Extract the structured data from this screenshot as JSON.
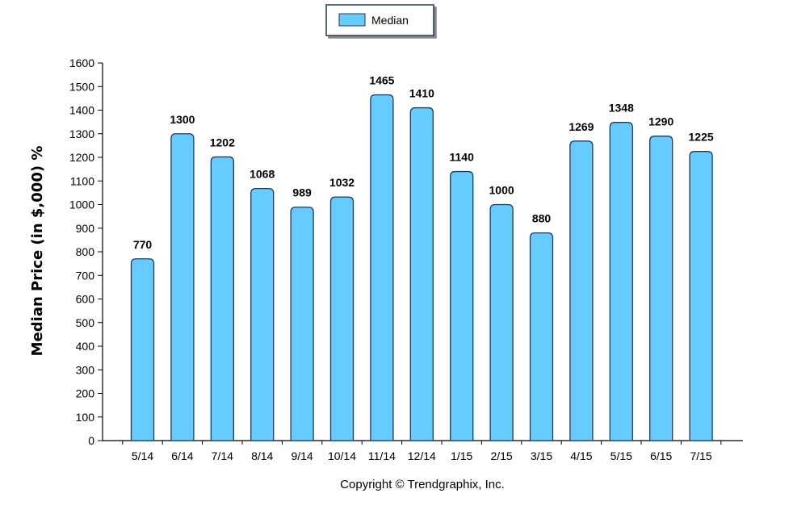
{
  "chart_data": {
    "type": "bar",
    "categories": [
      "5/14",
      "6/14",
      "7/14",
      "8/14",
      "9/14",
      "10/14",
      "11/14",
      "12/14",
      "1/15",
      "2/15",
      "3/15",
      "4/15",
      "5/15",
      "6/15",
      "7/15"
    ],
    "series": [
      {
        "name": "Median",
        "values": [
          770,
          1300,
          1202,
          1068,
          989,
          1032,
          1465,
          1410,
          1140,
          1000,
          880,
          1269,
          1348,
          1290,
          1225
        ]
      }
    ],
    "data_labels": [
      "770",
      "1300",
      "1202",
      "1068",
      "989",
      "1032",
      "1465",
      "1410",
      "1140",
      "1000",
      "880",
      "1269",
      "1348",
      "1290",
      "1225"
    ],
    "ylabel": "Median Price (in $,000) %",
    "xlabel": "",
    "ylim": [
      0,
      1600
    ],
    "yticks": [
      0,
      100,
      200,
      300,
      400,
      500,
      600,
      700,
      800,
      900,
      1000,
      1100,
      1200,
      1300,
      1400,
      1500,
      1600
    ],
    "grid": false,
    "legend_position": "top-center"
  },
  "colors": {
    "bar_fill": "#66CCFF",
    "bar_stroke": "#1f3a5a",
    "axis": "#000000"
  },
  "footer": {
    "copyright": "Copyright © Trendgraphix, Inc."
  }
}
